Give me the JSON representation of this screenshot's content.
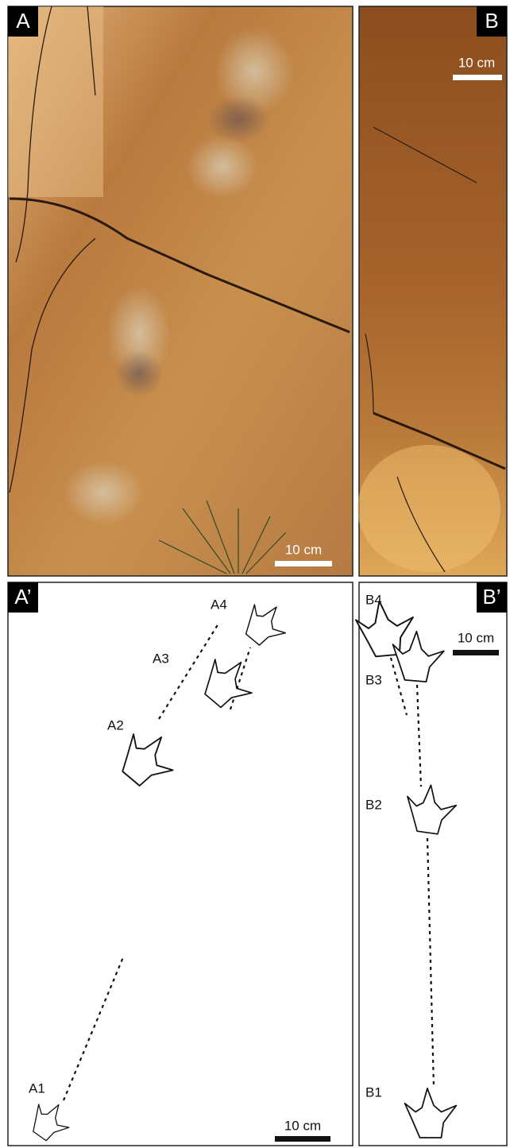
{
  "photo_a": {
    "label": "A",
    "scale": "10 cm"
  },
  "photo_b": {
    "label": "B",
    "scale": "10 cm"
  },
  "drawing_a": {
    "label": "A’",
    "scale": "10 cm",
    "tracks": [
      "A1",
      "A2",
      "A3",
      "A4"
    ]
  },
  "drawing_b": {
    "label": "B’",
    "scale": "10 cm",
    "tracks": [
      "B1",
      "B2",
      "B3",
      "B4"
    ]
  }
}
